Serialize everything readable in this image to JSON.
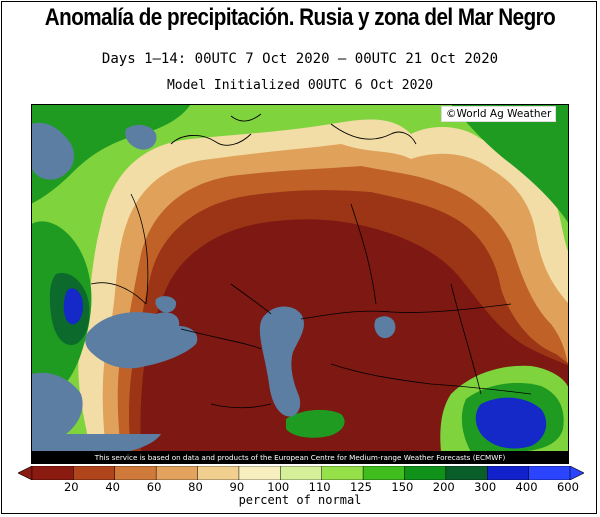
{
  "title": "Anomalía de precipitación. Rusia y zona del Mar Negro",
  "subtitle_period": "Days 1–14: 00UTC 7 Oct 2020 — 00UTC 21 Oct 2020",
  "subtitle_model": "Model Initialized 00UTC 6 Oct 2020",
  "copyright": "©World Ag Weather",
  "credit": "This service is based on data and products of the European Centre for Medium-range Weather Forecasts (ECMWF)",
  "legend": {
    "label": "percent of normal",
    "ticks": [
      "20",
      "40",
      "60",
      "80",
      "90",
      "100",
      "110",
      "125",
      "150",
      "200",
      "300",
      "400",
      "600"
    ],
    "colors": [
      "#8b1a10",
      "#b0451c",
      "#cf7a3a",
      "#e3a35f",
      "#f1cf8e",
      "#f7efc0",
      "#d6f09a",
      "#96e04a",
      "#3fbe1e",
      "#10911a",
      "#0a5e2a",
      "#1122cc",
      "#2a44ff"
    ]
  },
  "map_colors": {
    "very_dry": "#7d1812",
    "dry": "#9c3416",
    "moderately_dry": "#c06228",
    "slightly_dry": "#e0a25a",
    "near_normal": "#f3dda6",
    "wet": "#7fd43e",
    "very_wet": "#1f9b22",
    "extremely_wet": "#0b6a2c",
    "max_wet": "#1528c8",
    "water": "#5b7ea2"
  }
}
